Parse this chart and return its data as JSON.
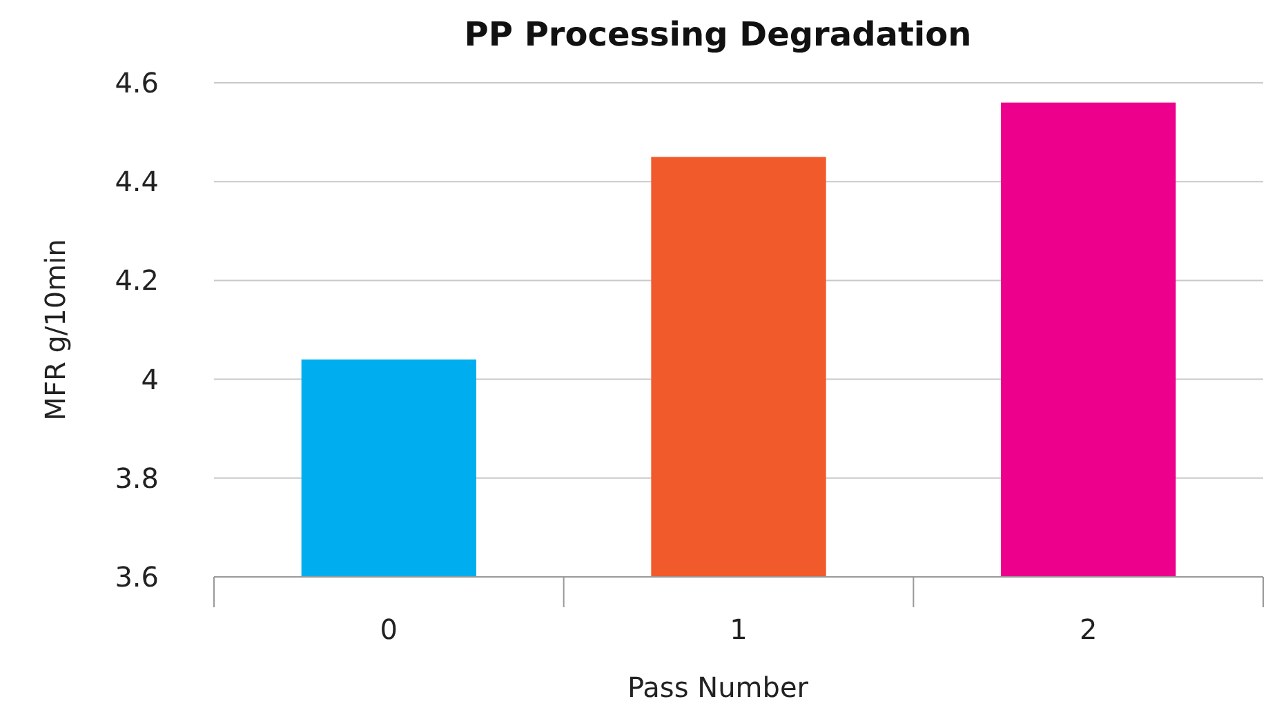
{
  "chart_data": {
    "type": "bar",
    "title": "PP Processing Degradation",
    "xlabel": "Pass Number",
    "ylabel": "MFR g/10min",
    "categories": [
      "0",
      "1",
      "2"
    ],
    "values": [
      4.04,
      4.45,
      4.56
    ],
    "colors": [
      "#00aeef",
      "#f15a2b",
      "#ec008c"
    ],
    "ylim": [
      3.6,
      4.6
    ],
    "yticks": [
      {
        "value": 3.6,
        "label": "3.6"
      },
      {
        "value": 3.8,
        "label": "3.8"
      },
      {
        "value": 4,
        "label": "4"
      },
      {
        "value": 4.2,
        "label": "4.2"
      },
      {
        "value": 4.4,
        "label": "4.4"
      },
      {
        "value": 4.6,
        "label": "4.6"
      }
    ],
    "grid": "y"
  }
}
